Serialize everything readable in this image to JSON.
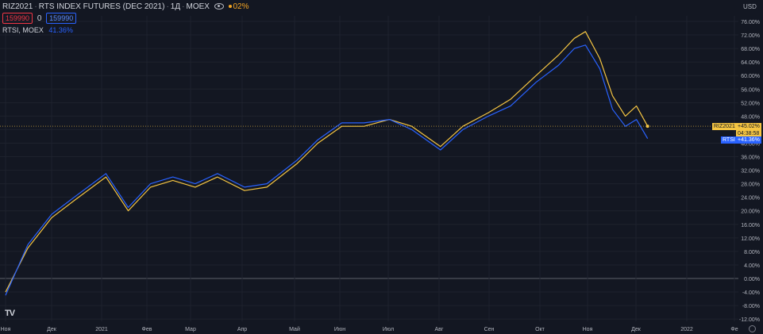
{
  "header": {
    "symbol": "RIZ2021",
    "title": "RTS INDEX FUTURES (DEC 2021)",
    "interval": "1Д",
    "exchange": "MOEX",
    "change_pct": "02%"
  },
  "quote": {
    "bid": "159990",
    "spread": "0",
    "ask": "159990"
  },
  "compare": {
    "symbol": "RTSI",
    "exchange": "MOEX",
    "value": "41.36%"
  },
  "axis": {
    "currency": "USD",
    "y_ticks": [
      "76.00%",
      "72.00%",
      "68.00%",
      "64.00%",
      "60.00%",
      "56.00%",
      "52.00%",
      "48.00%",
      "44.00%",
      "40.00%",
      "36.00%",
      "32.00%",
      "28.00%",
      "24.00%",
      "20.00%",
      "16.00%",
      "12.00%",
      "8.00%",
      "4.00%",
      "0.00%",
      "-4.00%",
      "-8.00%",
      "-12.00%"
    ],
    "x_ticks": [
      "Ноя",
      "Дек",
      "2021",
      "Фев",
      "Мар",
      "Апр",
      "Май",
      "Июн",
      "Июл",
      "Авг",
      "Сен",
      "Окт",
      "Ноя",
      "Дек",
      "2022",
      "Фе"
    ]
  },
  "badges": {
    "riz_label": "RIZ2021",
    "riz_value": "+45.02%",
    "riz_countdown": "04:38:58",
    "rts_label": "RTSI",
    "rts_value": "+41.36%"
  },
  "colors": {
    "background": "#131722",
    "riz_line": "#f5c542",
    "rts_line": "#2962ff",
    "grid": "#2a2e39"
  },
  "chart_data": {
    "type": "line",
    "y_unit": "%",
    "ylim": [
      -12,
      78
    ],
    "x_range": [
      "2020-11",
      "2022-02"
    ],
    "grid": true,
    "x": [
      "2020-11-02",
      "2020-11-16",
      "2020-12-01",
      "2020-12-15",
      "2021-01-04",
      "2021-01-18",
      "2021-02-01",
      "2021-02-15",
      "2021-03-01",
      "2021-03-15",
      "2021-04-01",
      "2021-04-15",
      "2021-05-04",
      "2021-05-17",
      "2021-06-01",
      "2021-06-15",
      "2021-07-01",
      "2021-07-15",
      "2021-08-02",
      "2021-08-16",
      "2021-09-01",
      "2021-09-15",
      "2021-10-01",
      "2021-10-15",
      "2021-10-25",
      "2021-11-01",
      "2021-11-10",
      "2021-11-18",
      "2021-11-26",
      "2021-12-03",
      "2021-12-10"
    ],
    "series": [
      {
        "name": "RIZ2021",
        "color": "#f5c542",
        "values": [
          -4,
          9,
          18,
          23,
          30,
          20,
          27,
          29,
          27,
          30,
          26,
          27,
          34,
          40,
          45,
          45,
          47,
          45,
          39,
          45,
          49,
          53,
          60,
          66,
          71,
          73,
          65,
          54,
          48,
          51,
          45.02
        ]
      },
      {
        "name": "RTSI",
        "color": "#2962ff",
        "values": [
          -5,
          10,
          19,
          24,
          31,
          21,
          28,
          30,
          28,
          31,
          27,
          28,
          35,
          41,
          46,
          46,
          47,
          44,
          38,
          44,
          48,
          51,
          58,
          63,
          68,
          69,
          62,
          50,
          45,
          47,
          41.36
        ]
      }
    ]
  }
}
